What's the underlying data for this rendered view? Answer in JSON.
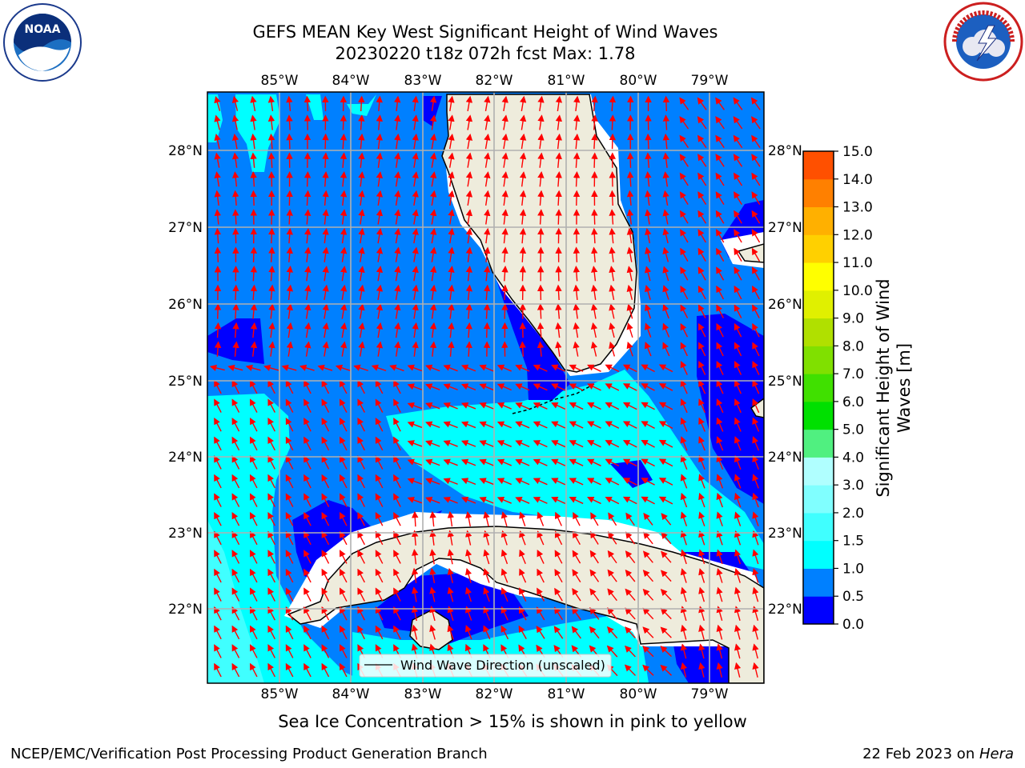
{
  "title_line1": "GEFS MEAN Key West Significant Height of Wind Waves",
  "title_line2": "20230220 t18z 072h fcst   Max: 1.78",
  "lon_labels": [
    "85°W",
    "84°W",
    "83°W",
    "82°W",
    "81°W",
    "80°W",
    "79°W"
  ],
  "lat_labels": [
    "28°N",
    "27°N",
    "26°N",
    "25°N",
    "24°N",
    "23°N",
    "22°N"
  ],
  "colorbar": {
    "title": "Significant Height of Wind Waves [m]",
    "ticks": [
      "0.0",
      "0.5",
      "1.0",
      "1.5",
      "2.0",
      "3.0",
      "4.0",
      "5.0",
      "6.0",
      "7.0",
      "8.0",
      "9.0",
      "10.0",
      "11.0",
      "12.0",
      "13.0",
      "14.0",
      "15.0"
    ],
    "colors": [
      "#0000ff",
      "#0080ff",
      "#00ffff",
      "#40ffff",
      "#80ffff",
      "#b0ffff",
      "#50f080",
      "#00e000",
      "#40e000",
      "#80e000",
      "#b0e000",
      "#e0f000",
      "#ffff00",
      "#ffd000",
      "#ffb000",
      "#ff8000",
      "#ff5000",
      "#ff2000",
      "#ff0000"
    ]
  },
  "legend_label": "Wind Wave Direction (unscaled)",
  "note": "Sea Ice Concentration > 15% is shown in pink to yellow",
  "footer_left": "NCEP/EMC/Verification Post Processing Product Generation Branch",
  "footer_date": "22 Feb 2023 on ",
  "footer_host": "Hera",
  "logos": {
    "left": "noaa-logo",
    "right": "nws-logo",
    "left_text": "NOAA"
  },
  "colors": {
    "dark_blue": "#0000ff",
    "mid_blue": "#0080ff",
    "cyan": "#00ffff",
    "light_cyan": "#40ffff",
    "land": "#eeecdc",
    "arrow": "#ff0000"
  }
}
